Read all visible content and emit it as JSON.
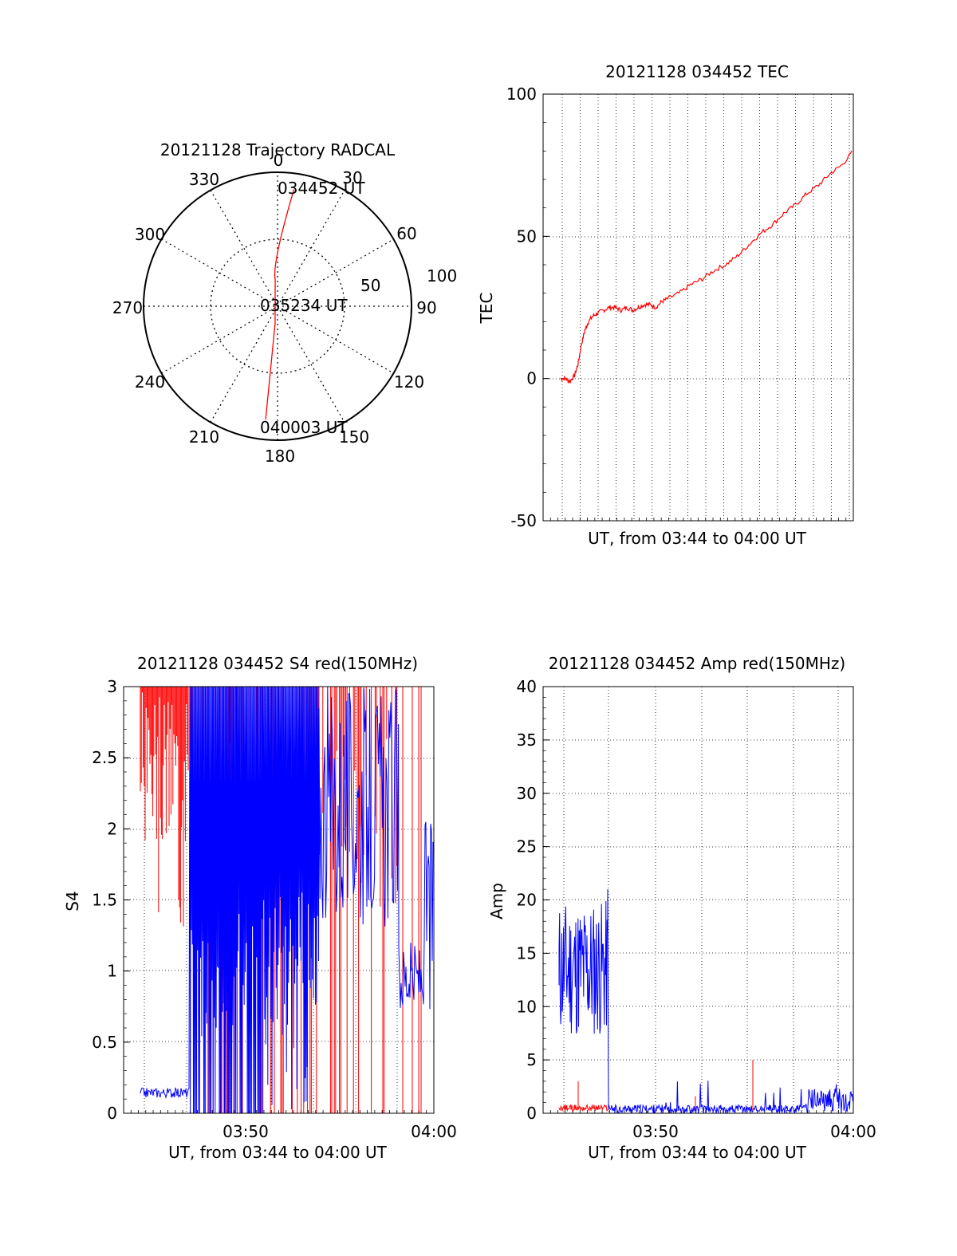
{
  "colors": {
    "red": "#ff0000",
    "blue": "#0000ff",
    "grid": "#000000"
  },
  "chart_data": [
    {
      "id": "trajectory",
      "type": "scatter",
      "subtype": "polar",
      "title": "20121128 Trajectory RADCAL",
      "azimuth_labels": [
        "0",
        "30",
        "60",
        "90",
        "120",
        "150",
        "180",
        "210",
        "240",
        "270",
        "300",
        "330"
      ],
      "radial_labels": [
        "50",
        "100"
      ],
      "time_labels": [
        "034452 UT",
        "035234 UT",
        "040003 UT"
      ],
      "trajectory": {
        "color": "red",
        "points": [
          {
            "az": 8,
            "r": 88
          },
          {
            "az": 355,
            "r": 20
          },
          {
            "az": 188,
            "r": 13
          },
          {
            "az": 186,
            "r": 85
          }
        ]
      }
    },
    {
      "id": "tec",
      "type": "line",
      "title": "20121128 034452 TEC",
      "xlabel": "UT, from 03:44 to 04:00 UT",
      "ylabel": "TEC",
      "xlim": [
        3.733,
        4.0
      ],
      "ylim": [
        -50,
        100
      ],
      "yticks": [
        "100",
        "50",
        "0",
        "-50"
      ],
      "grid": true,
      "series": [
        {
          "color": "red",
          "x": [
            3.748,
            3.752,
            3.756,
            3.76,
            3.763,
            3.766,
            3.769,
            3.772,
            3.776,
            3.78,
            3.785,
            3.79,
            3.795,
            3.8,
            3.805,
            3.81,
            3.815,
            3.82,
            3.825,
            3.83,
            3.835,
            3.84,
            3.85,
            3.86,
            3.87,
            3.88,
            3.89,
            3.9,
            3.91,
            3.92,
            3.93,
            3.94,
            3.95,
            3.96,
            3.97,
            3.98,
            3.99,
            4.0
          ],
          "values": [
            0,
            0,
            -1,
            1,
            5,
            12,
            17,
            20,
            22,
            23,
            24,
            25,
            25,
            24,
            25,
            24,
            25,
            26,
            26,
            25,
            27,
            28,
            30,
            33,
            35,
            38,
            40,
            43,
            47,
            51,
            54,
            58,
            61,
            65,
            68,
            72,
            75,
            80
          ]
        }
      ]
    },
    {
      "id": "s4",
      "type": "line",
      "title": "20121128 034452 S4 red(150MHz)",
      "xlabel": "UT, from 03:44 to 04:00 UT",
      "ylabel": "S4",
      "xlim": [
        3.733,
        4.0
      ],
      "ylim": [
        0,
        3
      ],
      "yticks": [
        "3",
        "2.5",
        "2",
        "1.5",
        "1",
        "0.5",
        "0"
      ],
      "xtick_labels": [
        "03:50",
        "04:00"
      ],
      "grid": true,
      "series": [
        {
          "color": "red",
          "note_range": [
            3.74,
            3.99
          ],
          "y_range": [
            0,
            3
          ]
        },
        {
          "color": "blue",
          "note_range": [
            3.74,
            4.0
          ],
          "y_range": [
            0,
            3
          ]
        }
      ]
    },
    {
      "id": "amp",
      "type": "line",
      "title": "20121128 034452 Amp red(150MHz)",
      "xlabel": "UT, from 03:44 to 04:00 UT",
      "ylabel": "Amp",
      "xlim": [
        3.733,
        4.0
      ],
      "ylim": [
        0,
        40
      ],
      "yticks": [
        "40",
        "35",
        "30",
        "25",
        "20",
        "15",
        "10",
        "5",
        "0"
      ],
      "xtick_labels": [
        "03:50",
        "04:00"
      ],
      "grid": true,
      "series": [
        {
          "color": "blue",
          "segments": [
            {
              "x": [
                3.74,
                3.79
              ],
              "y": [
                7,
                21
              ]
            },
            {
              "x": [
                3.79,
                4.0
              ],
              "y": [
                0,
                3
              ]
            }
          ]
        },
        {
          "color": "red",
          "segments": [
            {
              "x": [
                3.74,
                3.79
              ],
              "y": [
                0,
                1
              ]
            },
            {
              "x": [
                3.79,
                4.0
              ],
              "y": [
                0,
                5
              ]
            }
          ]
        }
      ]
    }
  ]
}
